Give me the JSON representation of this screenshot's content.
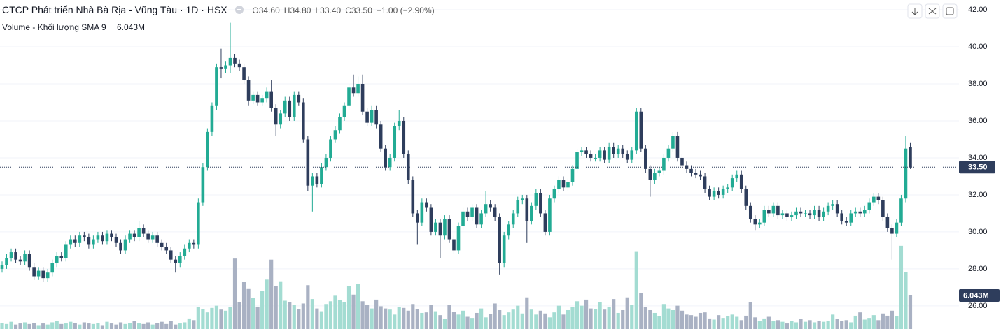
{
  "chart_data": {
    "type": "candlestick",
    "title": "CTCP Phát triển Nhà Bà Rịa - Vũng Tàu · 1D · HSX",
    "legend": [
      "O34.60",
      "H34.80",
      "L33.40",
      "C33.50",
      "−1.00 (−2.90%)"
    ],
    "up_color": "#22ab94",
    "down_color": "#2e3d5c",
    "grid": true,
    "ylim": [
      24.75,
      42.53
    ],
    "yticks": [
      {
        "value": 26,
        "label": "26.00"
      },
      {
        "value": 28,
        "label": "28.00"
      },
      {
        "value": 30,
        "label": "30.00"
      },
      {
        "value": 32,
        "label": "32.00"
      },
      {
        "value": 34,
        "label": "34.00"
      },
      {
        "value": 36,
        "label": "36.00"
      },
      {
        "value": 38,
        "label": "38.00"
      },
      {
        "value": 40,
        "label": "40.00"
      },
      {
        "value": 42,
        "label": "42.00"
      }
    ],
    "y2lim": [
      0,
      59.3
    ],
    "last_price_label": "33.50",
    "open": [
      28.0,
      28.2,
      28.6,
      28.9,
      28.5,
      28.4,
      28.8,
      28.1,
      27.6,
      27.9,
      27.5,
      27.8,
      28.3,
      28.7,
      28.6,
      29.3,
      29.6,
      29.4,
      29.8,
      29.7,
      29.3,
      29.6,
      29.8,
      29.5,
      29.9,
      29.7,
      29.4,
      29.0,
      29.6,
      29.9,
      29.7,
      30.2,
      29.9,
      29.6,
      29.8,
      29.4,
      29.2,
      29.0,
      28.5,
      28.3,
      28.7,
      29.1,
      29.4,
      29.3,
      31.6,
      33.5,
      35.4,
      36.8,
      38.9,
      38.8,
      39.0,
      39.4,
      39.1,
      38.9,
      38.2,
      37.1,
      37.4,
      37.0,
      37.2,
      37.6,
      36.7,
      35.8,
      36.4,
      37.1,
      36.2,
      37.4,
      37.0,
      35.0,
      32.5,
      33.0,
      32.6,
      33.5,
      34.0,
      35.0,
      35.5,
      36.2,
      36.8,
      37.8,
      37.5,
      38.0,
      36.5,
      35.9,
      36.6,
      35.8,
      34.5,
      33.5,
      34.0,
      35.7,
      36.0,
      34.2,
      32.8,
      31.0,
      30.5,
      31.6,
      31.3,
      30.0,
      30.5,
      29.8,
      30.7,
      29.6,
      29.0,
      30.3,
      31.1,
      30.8,
      31.3,
      30.4,
      31.0,
      31.5,
      31.3,
      30.8,
      28.3,
      29.8,
      30.4,
      31.0,
      31.7,
      31.8,
      30.6,
      31.4,
      32.1,
      31.0,
      30.0,
      31.8,
      32.3,
      32.8,
      32.4,
      32.7,
      33.4,
      34.3,
      34.4,
      34.2,
      34.0,
      34.0,
      34.4,
      33.9,
      34.6,
      34.2,
      34.5,
      34.2,
      33.9,
      34.4,
      36.5,
      34.5,
      33.4,
      32.8,
      33.2,
      33.3,
      34.0,
      34.5,
      35.2,
      34.0,
      33.6,
      33.4,
      33.2,
      33.1,
      33.0,
      32.3,
      31.9,
      32.2,
      32.0,
      32.3,
      32.4,
      32.9,
      33.1,
      32.3,
      31.4,
      30.7,
      30.4,
      30.5,
      31.2,
      31.0,
      31.4,
      30.9,
      31.0,
      30.8,
      30.9,
      31.1,
      31.0,
      31.0,
      30.9,
      31.2,
      30.8,
      31.1,
      31.4,
      31.5,
      31.0,
      30.6,
      30.5,
      31.0,
      31.1,
      31.0,
      31.2,
      31.6,
      31.9,
      31.7,
      30.8,
      30.2,
      29.9,
      30.5,
      31.8,
      34.6
    ],
    "high": [
      28.4,
      28.8,
      29.1,
      29.1,
      28.7,
      29.0,
      29.0,
      28.3,
      28.1,
      28.1,
      28.0,
      28.5,
      28.9,
      28.9,
      29.5,
      29.8,
      29.8,
      30.0,
      30.0,
      29.9,
      29.8,
      30.0,
      30.0,
      30.1,
      30.1,
      29.9,
      29.6,
      29.8,
      30.1,
      30.1,
      30.6,
      30.4,
      30.1,
      30.0,
      30.0,
      29.6,
      29.4,
      29.2,
      28.7,
      28.9,
      29.3,
      29.6,
      29.6,
      31.8,
      33.7,
      35.6,
      37.0,
      39.1,
      39.9,
      39.2,
      41.3,
      39.6,
      39.3,
      39.1,
      38.4,
      37.6,
      37.6,
      37.4,
      37.8,
      38.2,
      36.9,
      36.6,
      37.3,
      37.3,
      37.6,
      37.6,
      37.2,
      35.2,
      33.2,
      33.2,
      33.7,
      34.2,
      35.2,
      35.7,
      36.4,
      37.0,
      38.0,
      38.5,
      38.4,
      38.5,
      36.7,
      36.8,
      36.8,
      36.0,
      34.7,
      34.2,
      35.9,
      36.6,
      36.2,
      34.4,
      33.0,
      31.2,
      31.8,
      31.8,
      31.5,
      30.7,
      30.7,
      30.9,
      30.9,
      29.8,
      30.5,
      31.3,
      31.3,
      31.5,
      31.5,
      31.2,
      32.2,
      31.7,
      31.5,
      31.0,
      30.0,
      30.6,
      31.2,
      31.9,
      32.0,
      32.0,
      31.6,
      32.3,
      32.3,
      31.2,
      32.0,
      32.5,
      33.0,
      33.0,
      32.9,
      33.6,
      34.5,
      34.6,
      34.6,
      34.4,
      34.2,
      34.6,
      34.6,
      34.8,
      34.8,
      34.7,
      34.7,
      34.4,
      34.6,
      36.7,
      36.7,
      34.7,
      33.6,
      33.4,
      33.5,
      34.2,
      34.7,
      35.4,
      35.4,
      34.2,
      33.8,
      33.6,
      33.4,
      33.3,
      33.2,
      32.5,
      32.4,
      32.4,
      32.5,
      32.6,
      33.1,
      33.3,
      33.3,
      32.5,
      31.6,
      30.9,
      30.7,
      31.4,
      31.4,
      31.6,
      31.6,
      31.2,
      31.2,
      31.1,
      31.3,
      31.3,
      31.2,
      31.2,
      31.4,
      31.4,
      31.3,
      31.6,
      31.7,
      31.7,
      31.2,
      30.8,
      31.2,
      31.3,
      31.3,
      31.4,
      31.8,
      32.1,
      32.1,
      31.9,
      31.0,
      30.4,
      30.7,
      32.0,
      35.2,
      34.8
    ],
    "low": [
      27.8,
      28.0,
      28.4,
      28.3,
      28.2,
      28.2,
      27.9,
      27.4,
      27.4,
      27.3,
      27.3,
      27.6,
      28.1,
      28.4,
      28.4,
      29.1,
      29.2,
      29.2,
      29.5,
      29.1,
      29.1,
      29.4,
      29.3,
      29.3,
      29.5,
      29.2,
      28.8,
      28.8,
      29.4,
      29.5,
      29.5,
      29.7,
      29.4,
      29.4,
      29.2,
      29.0,
      28.8,
      28.3,
      27.8,
      28.1,
      28.5,
      28.9,
      29.1,
      29.1,
      31.4,
      33.3,
      35.2,
      36.6,
      38.3,
      38.6,
      38.6,
      38.9,
      38.7,
      38.0,
      36.8,
      36.9,
      36.8,
      36.8,
      37.0,
      36.5,
      35.2,
      35.6,
      36.2,
      36.0,
      36.0,
      36.8,
      34.8,
      32.2,
      31.1,
      32.4,
      32.4,
      33.3,
      33.8,
      34.8,
      35.3,
      36.0,
      36.6,
      37.3,
      37.3,
      36.3,
      35.7,
      35.7,
      35.6,
      34.3,
      33.3,
      33.3,
      33.8,
      35.5,
      34.0,
      32.6,
      30.8,
      29.3,
      30.3,
      31.1,
      29.8,
      29.8,
      28.6,
      29.6,
      29.4,
      28.8,
      28.8,
      30.1,
      30.6,
      30.6,
      30.2,
      30.2,
      30.8,
      31.1,
      30.6,
      27.7,
      28.1,
      29.6,
      30.2,
      30.8,
      31.5,
      29.4,
      30.4,
      31.2,
      30.8,
      29.8,
      29.8,
      31.6,
      32.1,
      32.2,
      32.2,
      32.5,
      33.2,
      34.1,
      34.0,
      33.8,
      33.8,
      33.8,
      33.7,
      33.7,
      34.0,
      34.0,
      34.0,
      33.7,
      33.7,
      34.2,
      34.3,
      33.2,
      31.9,
      32.6,
      33.0,
      33.1,
      33.8,
      34.3,
      33.8,
      33.4,
      33.2,
      33.0,
      32.9,
      32.8,
      32.1,
      31.7,
      31.7,
      31.8,
      31.8,
      32.1,
      32.2,
      32.7,
      32.1,
      31.2,
      30.5,
      30.1,
      30.2,
      30.3,
      30.8,
      30.8,
      30.7,
      30.7,
      30.6,
      30.6,
      30.7,
      30.8,
      30.8,
      30.7,
      30.7,
      30.6,
      30.6,
      30.9,
      31.2,
      30.8,
      30.4,
      30.3,
      30.3,
      30.8,
      30.8,
      30.8,
      31.0,
      31.4,
      31.5,
      30.6,
      30.0,
      28.5,
      29.7,
      30.3,
      31.6,
      33.4
    ],
    "close": [
      28.2,
      28.6,
      28.9,
      28.5,
      28.4,
      28.8,
      28.1,
      27.6,
      27.9,
      27.5,
      27.8,
      28.3,
      28.7,
      28.6,
      29.3,
      29.6,
      29.4,
      29.8,
      29.7,
      29.3,
      29.6,
      29.8,
      29.5,
      29.9,
      29.7,
      29.4,
      29.0,
      29.6,
      29.9,
      29.7,
      30.2,
      29.9,
      29.6,
      29.8,
      29.4,
      29.2,
      29.0,
      28.5,
      28.3,
      28.7,
      29.1,
      29.4,
      29.3,
      31.6,
      33.5,
      35.4,
      36.8,
      38.9,
      38.8,
      39.0,
      39.4,
      39.1,
      38.9,
      38.2,
      37.1,
      37.4,
      37.0,
      37.2,
      37.6,
      36.7,
      35.8,
      36.4,
      37.1,
      36.2,
      37.4,
      37.0,
      35.0,
      32.5,
      33.0,
      32.6,
      33.5,
      34.0,
      35.0,
      35.5,
      36.2,
      36.8,
      37.8,
      37.5,
      38.0,
      36.5,
      35.9,
      36.6,
      35.8,
      34.5,
      33.5,
      34.0,
      35.7,
      36.0,
      34.2,
      32.8,
      31.0,
      30.5,
      31.6,
      31.3,
      30.0,
      30.5,
      29.8,
      30.7,
      29.6,
      29.0,
      30.3,
      31.1,
      30.8,
      31.3,
      30.4,
      31.0,
      31.5,
      31.3,
      30.8,
      28.3,
      29.8,
      30.4,
      31.0,
      31.7,
      31.8,
      30.6,
      31.4,
      32.1,
      31.0,
      30.0,
      31.8,
      32.3,
      32.8,
      32.4,
      32.7,
      33.4,
      34.3,
      34.4,
      34.2,
      34.0,
      34.0,
      34.4,
      33.9,
      34.6,
      34.2,
      34.5,
      34.2,
      33.9,
      34.4,
      36.5,
      34.5,
      33.4,
      32.8,
      33.2,
      33.3,
      34.0,
      34.5,
      35.2,
      34.0,
      33.6,
      33.4,
      33.2,
      33.1,
      33.0,
      32.3,
      31.9,
      32.2,
      32.0,
      32.3,
      32.4,
      32.9,
      33.1,
      32.3,
      31.4,
      30.7,
      30.4,
      30.5,
      31.2,
      31.0,
      31.4,
      30.9,
      31.0,
      30.8,
      30.9,
      31.1,
      31.0,
      31.0,
      30.9,
      31.2,
      30.8,
      31.1,
      31.4,
      31.5,
      31.0,
      30.6,
      30.5,
      31.0,
      31.1,
      31.0,
      31.2,
      31.6,
      31.9,
      31.7,
      30.8,
      30.2,
      29.9,
      30.5,
      31.8,
      34.5,
      33.5
    ],
    "volume": {
      "name": "Volume - Khối lượng SMA 9",
      "axis": "y2",
      "up_color": "#a3dcd2",
      "down_color": "#a9b1c3",
      "last_label": "6.043M",
      "values": [
        1.1,
        0.9,
        1.3,
        0.8,
        1.0,
        1.2,
        0.9,
        1.1,
        0.7,
        1.0,
        0.8,
        1.2,
        1.4,
        0.9,
        1.0,
        1.3,
        1.1,
        0.8,
        1.2,
        1.0,
        0.9,
        1.1,
        0.7,
        1.3,
        1.0,
        0.8,
        1.2,
        0.9,
        1.1,
        1.4,
        1.0,
        0.9,
        1.2,
        0.8,
        1.1,
        1.3,
        0.9,
        1.5,
        0.8,
        1.0,
        1.2,
        1.9,
        1.6,
        4.0,
        3.6,
        3.0,
        3.8,
        4.2,
        3.5,
        3.3,
        4.0,
        12.7,
        4.8,
        8.5,
        7.2,
        5.6,
        4.0,
        6.8,
        8.9,
        12.5,
        7.8,
        8.6,
        5.1,
        4.8,
        4.4,
        3.6,
        4.6,
        7.9,
        5.4,
        3.7,
        3.2,
        4.5,
        5.0,
        6.0,
        5.2,
        4.9,
        7.8,
        6.2,
        8.1,
        5.0,
        4.3,
        3.7,
        5.3,
        4.1,
        3.7,
        3.5,
        2.6,
        4.0,
        3.8,
        3.3,
        4.5,
        3.6,
        2.9,
        3.0,
        4.3,
        3.2,
        2.5,
        1.8,
        4.4,
        3.1,
        2.6,
        3.3,
        2.2,
        2.0,
        2.9,
        3.7,
        2.1,
        2.7,
        4.6,
        3.4,
        2.5,
        3.0,
        3.5,
        4.2,
        2.8,
        5.7,
        3.5,
        2.6,
        3.3,
        2.8,
        2.1,
        3.0,
        4.2,
        2.6,
        3.4,
        3.9,
        5.0,
        4.2,
        5.3,
        3.7,
        3.6,
        4.8,
        3.5,
        3.9,
        5.4,
        2.9,
        3.4,
        5.7,
        4.3,
        13.9,
        6.5,
        4.0,
        3.4,
        2.9,
        2.3,
        4.5,
        3.7,
        3.4,
        4.2,
        3.3,
        2.6,
        2.5,
        2.2,
        2.9,
        3.0,
        1.9,
        1.7,
        2.5,
        2.0,
        2.3,
        2.6,
        2.2,
        1.6,
        2.4,
        4.8,
        2.1,
        1.5,
        1.9,
        2.2,
        1.4,
        1.6,
        1.3,
        1.0,
        1.5,
        1.2,
        1.8,
        1.3,
        1.6,
        1.2,
        1.4,
        1.3,
        1.5,
        2.6,
        1.8,
        1.4,
        1.6,
        1.2,
        2.4,
        3.0,
        1.7,
        2.0,
        2.5,
        1.6,
        2.8,
        2.4,
        3.3,
        2.3,
        15.0,
        10.2,
        6.043
      ]
    }
  }
}
